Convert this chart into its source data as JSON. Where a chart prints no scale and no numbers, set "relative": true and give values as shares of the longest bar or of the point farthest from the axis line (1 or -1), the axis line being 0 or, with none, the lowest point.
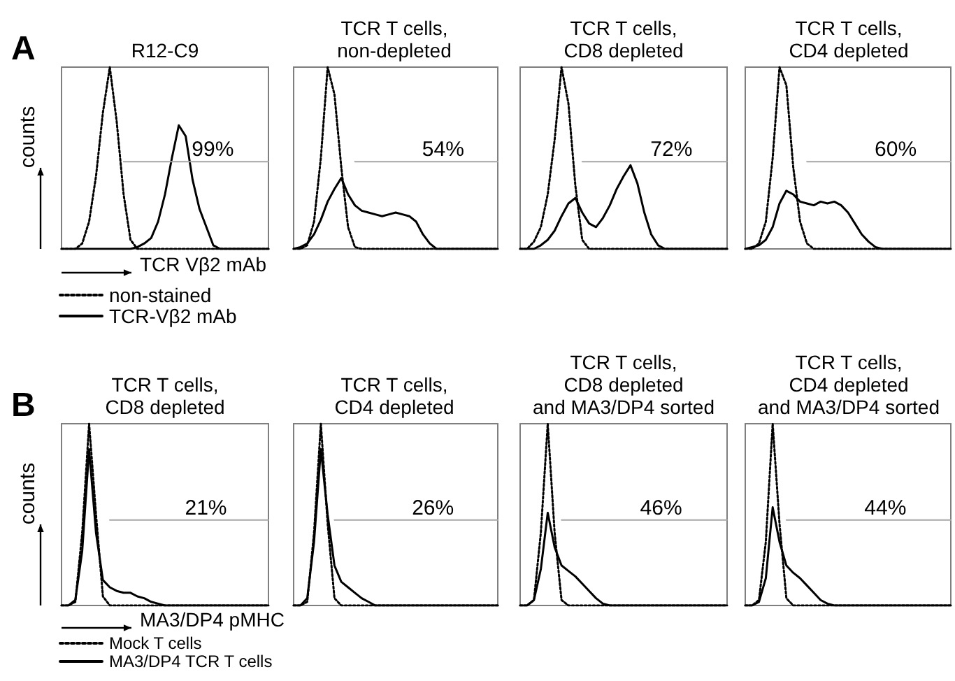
{
  "chart_data": [
    {
      "type": "line",
      "title": "R12-C9",
      "xlabel": "TCR Vβ2 mAb",
      "ylabel": "counts",
      "relative": true,
      "marker": "none",
      "legend": "bottom left",
      "annotations": [
        "A",
        {
          "text": "99%",
          "y": 0.48
        }
      ],
      "categories": [
        null,
        null,
        null,
        null,
        null,
        null,
        null,
        null,
        null,
        null,
        null,
        null,
        null,
        null,
        null,
        null,
        null,
        null,
        null,
        null,
        null,
        null,
        null,
        null,
        null,
        null,
        null,
        null,
        null,
        null,
        null
      ],
      "series": [
        {
          "name": "non-stained",
          "color": "#000000",
          "line_style": "dotted",
          "values": [
            0,
            0,
            0,
            0.03,
            0.15,
            0.4,
            0.75,
            1,
            0.7,
            0.3,
            0.05,
            0,
            0,
            0,
            0,
            0,
            0,
            0,
            0,
            0,
            0,
            0,
            0,
            0,
            0,
            0,
            0,
            0,
            0,
            0,
            0
          ]
        },
        {
          "name": "TCR-Vβ2 mAb",
          "color": "#000000",
          "line_style": "solid",
          "values": [
            0,
            0,
            0,
            0,
            0,
            0,
            0,
            0,
            0,
            0,
            0,
            0.01,
            0.03,
            0.06,
            0.15,
            0.3,
            0.5,
            0.68,
            0.62,
            0.38,
            0.22,
            0.12,
            0.02,
            0,
            0,
            0,
            0,
            0,
            0,
            0,
            0
          ]
        },
        {
          "color": "#a6a6a6",
          "line_style": "solid",
          "values": [
            null,
            null,
            null,
            null,
            null,
            null,
            null,
            null,
            null,
            0.48,
            0.48,
            0.48,
            0.48,
            0.48,
            0.48,
            0.48,
            0.48,
            0.48,
            0.48,
            0.48,
            0.48,
            0.48,
            0.48,
            0.48,
            0.48,
            0.48,
            0.48,
            0.48,
            0.48,
            0.48,
            0.48
          ]
        }
      ]
    },
    {
      "type": "line",
      "title": "TCR T cells,\nnon-depleted",
      "relative": true,
      "marker": "none",
      "annotations": [
        {
          "text": "54%",
          "y": 0.48
        }
      ],
      "categories": [
        null,
        null,
        null,
        null,
        null,
        null,
        null,
        null,
        null,
        null,
        null,
        null,
        null,
        null,
        null,
        null,
        null,
        null,
        null,
        null,
        null,
        null,
        null,
        null,
        null,
        null,
        null,
        null,
        null,
        null,
        null
      ],
      "series": [
        {
          "color": "#000000",
          "line_style": "dotted",
          "values": [
            0,
            0,
            0.02,
            0.15,
            0.5,
            1,
            0.85,
            0.45,
            0.12,
            0.01,
            0,
            0,
            0,
            0,
            0,
            0,
            0,
            0,
            0,
            0,
            0,
            0,
            0,
            0,
            0,
            0,
            0,
            0,
            0,
            0,
            0
          ]
        },
        {
          "color": "#000000",
          "line_style": "solid",
          "values": [
            0,
            0.01,
            0.03,
            0.08,
            0.16,
            0.26,
            0.33,
            0.39,
            0.3,
            0.24,
            0.21,
            0.2,
            0.19,
            0.18,
            0.19,
            0.2,
            0.19,
            0.18,
            0.15,
            0.08,
            0.03,
            0,
            0,
            0,
            0,
            0,
            0,
            0,
            0,
            0,
            0
          ]
        },
        {
          "color": "#a6a6a6",
          "line_style": "solid",
          "values": [
            null,
            null,
            null,
            null,
            null,
            null,
            null,
            null,
            null,
            0.48,
            0.48,
            0.48,
            0.48,
            0.48,
            0.48,
            0.48,
            0.48,
            0.48,
            0.48,
            0.48,
            0.48,
            0.48,
            0.48,
            0.48,
            0.48,
            0.48,
            0.48,
            0.48,
            0.48,
            0.48,
            0.48
          ]
        }
      ]
    },
    {
      "type": "line",
      "title": "TCR T cells,\nCD8 depleted",
      "relative": true,
      "marker": "none",
      "annotations": [
        {
          "text": "72%",
          "y": 0.48
        }
      ],
      "categories": [
        null,
        null,
        null,
        null,
        null,
        null,
        null,
        null,
        null,
        null,
        null,
        null,
        null,
        null,
        null,
        null,
        null,
        null,
        null,
        null,
        null,
        null,
        null,
        null,
        null,
        null,
        null,
        null,
        null,
        null,
        null
      ],
      "series": [
        {
          "color": "#000000",
          "line_style": "dotted",
          "values": [
            0,
            0,
            0.04,
            0.12,
            0.3,
            0.6,
            1,
            0.8,
            0.35,
            0.05,
            0,
            0,
            0,
            0,
            0,
            0,
            0,
            0,
            0,
            0,
            0,
            0,
            0,
            0,
            0,
            0,
            0,
            0,
            0,
            0,
            0
          ]
        },
        {
          "color": "#000000",
          "line_style": "solid",
          "values": [
            0,
            0,
            0,
            0.02,
            0.05,
            0.1,
            0.18,
            0.25,
            0.28,
            0.2,
            0.14,
            0.12,
            0.17,
            0.24,
            0.33,
            0.4,
            0.46,
            0.36,
            0.2,
            0.08,
            0.02,
            0,
            0,
            0,
            0,
            0,
            0,
            0,
            0,
            0,
            0
          ]
        },
        {
          "color": "#a6a6a6",
          "line_style": "solid",
          "values": [
            null,
            null,
            null,
            null,
            null,
            null,
            null,
            null,
            null,
            0.48,
            0.48,
            0.48,
            0.48,
            0.48,
            0.48,
            0.48,
            0.48,
            0.48,
            0.48,
            0.48,
            0.48,
            0.48,
            0.48,
            0.48,
            0.48,
            0.48,
            0.48,
            0.48,
            0.48,
            0.48,
            0.48
          ]
        }
      ]
    },
    {
      "type": "line",
      "title": "TCR T cells,\nCD4 depleted",
      "relative": true,
      "marker": "none",
      "annotations": [
        {
          "text": "60%",
          "y": 0.48
        }
      ],
      "categories": [
        null,
        null,
        null,
        null,
        null,
        null,
        null,
        null,
        null,
        null,
        null,
        null,
        null,
        null,
        null,
        null,
        null,
        null,
        null,
        null,
        null,
        null,
        null,
        null,
        null,
        null,
        null,
        null,
        null,
        null,
        null
      ],
      "series": [
        {
          "color": "#000000",
          "line_style": "dotted",
          "values": [
            0,
            0,
            0.03,
            0.15,
            0.5,
            1,
            0.9,
            0.45,
            0.15,
            0.03,
            0,
            0,
            0,
            0,
            0,
            0,
            0,
            0,
            0,
            0,
            0,
            0,
            0,
            0,
            0,
            0,
            0,
            0,
            0,
            0,
            0
          ]
        },
        {
          "color": "#000000",
          "line_style": "solid",
          "values": [
            0,
            0.01,
            0.02,
            0.05,
            0.12,
            0.25,
            0.32,
            0.3,
            0.26,
            0.25,
            0.24,
            0.26,
            0.25,
            0.26,
            0.24,
            0.2,
            0.14,
            0.08,
            0.04,
            0.01,
            0,
            0,
            0,
            0,
            0,
            0,
            0,
            0,
            0,
            0,
            0
          ]
        },
        {
          "color": "#a6a6a6",
          "line_style": "solid",
          "values": [
            null,
            null,
            null,
            null,
            null,
            null,
            null,
            null,
            null,
            0.48,
            0.48,
            0.48,
            0.48,
            0.48,
            0.48,
            0.48,
            0.48,
            0.48,
            0.48,
            0.48,
            0.48,
            0.48,
            0.48,
            0.48,
            0.48,
            0.48,
            0.48,
            0.48,
            0.48,
            0.48,
            0.48
          ]
        }
      ]
    },
    {
      "type": "line",
      "title": "TCR T cells,\nCD8 depleted",
      "xlabel": "MA3/DP4 pMHC",
      "ylabel": "counts",
      "relative": true,
      "marker": "none",
      "legend": "bottom left",
      "annotations": [
        "B",
        {
          "text": "21%",
          "y": 0.47
        }
      ],
      "categories": [
        null,
        null,
        null,
        null,
        null,
        null,
        null,
        null,
        null,
        null,
        null,
        null,
        null,
        null,
        null,
        null,
        null,
        null,
        null,
        null,
        null,
        null,
        null,
        null,
        null,
        null,
        null,
        null,
        null,
        null,
        null
      ],
      "series": [
        {
          "name": "Mock T cells",
          "color": "#000000",
          "line_style": "dotted",
          "values": [
            0,
            0,
            0.02,
            0.4,
            1,
            0.5,
            0.05,
            0,
            0,
            0,
            0,
            0,
            0,
            0,
            0,
            0,
            0,
            0,
            0,
            0,
            0,
            0,
            0,
            0,
            0,
            0,
            0,
            0,
            0,
            0,
            0
          ]
        },
        {
          "name": "MA3/DP4 TCR T cells",
          "color": "#000000",
          "line_style": "solid",
          "values": [
            0,
            0,
            0.03,
            0.3,
            0.86,
            0.4,
            0.14,
            0.1,
            0.08,
            0.07,
            0.07,
            0.05,
            0.04,
            0.02,
            0.01,
            0,
            0,
            0,
            0,
            0,
            0,
            0,
            0,
            0,
            0,
            0,
            0,
            0,
            0,
            0,
            0
          ]
        },
        {
          "color": "#a6a6a6",
          "line_style": "solid",
          "values": [
            null,
            null,
            null,
            null,
            null,
            null,
            null,
            0.47,
            0.47,
            0.47,
            0.47,
            0.47,
            0.47,
            0.47,
            0.47,
            0.47,
            0.47,
            0.47,
            0.47,
            0.47,
            0.47,
            0.47,
            0.47,
            0.47,
            0.47,
            0.47,
            0.47,
            0.47,
            0.47,
            0.47,
            0.47
          ]
        }
      ]
    },
    {
      "type": "line",
      "title": "TCR T cells,\nCD4 depleted",
      "relative": true,
      "marker": "none",
      "annotations": [
        {
          "text": "26%",
          "y": 0.47
        }
      ],
      "categories": [
        null,
        null,
        null,
        null,
        null,
        null,
        null,
        null,
        null,
        null,
        null,
        null,
        null,
        null,
        null,
        null,
        null,
        null,
        null,
        null,
        null,
        null,
        null,
        null,
        null,
        null,
        null,
        null,
        null,
        null,
        null
      ],
      "series": [
        {
          "color": "#000000",
          "line_style": "dotted",
          "values": [
            0,
            0,
            0.02,
            0.4,
            1,
            0.45,
            0.04,
            0,
            0,
            0,
            0,
            0,
            0,
            0,
            0,
            0,
            0,
            0,
            0,
            0,
            0,
            0,
            0,
            0,
            0,
            0,
            0,
            0,
            0,
            0,
            0
          ]
        },
        {
          "color": "#000000",
          "line_style": "solid",
          "values": [
            0,
            0,
            0.04,
            0.35,
            0.86,
            0.5,
            0.22,
            0.13,
            0.1,
            0.07,
            0.04,
            0.02,
            0,
            0,
            0,
            0,
            0,
            0,
            0,
            0,
            0,
            0,
            0,
            0,
            0,
            0,
            0,
            0,
            0,
            0,
            0
          ]
        },
        {
          "color": "#a6a6a6",
          "line_style": "solid",
          "values": [
            null,
            null,
            null,
            null,
            null,
            null,
            0.47,
            0.47,
            0.47,
            0.47,
            0.47,
            0.47,
            0.47,
            0.47,
            0.47,
            0.47,
            0.47,
            0.47,
            0.47,
            0.47,
            0.47,
            0.47,
            0.47,
            0.47,
            0.47,
            0.47,
            0.47,
            0.47,
            0.47,
            0.47,
            0.47
          ]
        }
      ]
    },
    {
      "type": "line",
      "title": "TCR T cells,\nCD8 depleted\nand MA3/DP4 sorted",
      "relative": true,
      "marker": "none",
      "annotations": [
        {
          "text": "46%",
          "y": 0.47
        }
      ],
      "categories": [
        null,
        null,
        null,
        null,
        null,
        null,
        null,
        null,
        null,
        null,
        null,
        null,
        null,
        null,
        null,
        null,
        null,
        null,
        null,
        null,
        null,
        null,
        null,
        null,
        null,
        null,
        null,
        null,
        null,
        null,
        null
      ],
      "series": [
        {
          "color": "#000000",
          "line_style": "dotted",
          "values": [
            0,
            0,
            0.03,
            0.4,
            1,
            0.4,
            0.03,
            0,
            0,
            0,
            0,
            0,
            0,
            0,
            0,
            0,
            0,
            0,
            0,
            0,
            0,
            0,
            0,
            0,
            0,
            0,
            0,
            0,
            0,
            0,
            0
          ]
        },
        {
          "color": "#000000",
          "line_style": "solid",
          "values": [
            0,
            0,
            0.03,
            0.2,
            0.51,
            0.32,
            0.22,
            0.19,
            0.16,
            0.12,
            0.08,
            0.04,
            0.01,
            0,
            0,
            0,
            0,
            0,
            0,
            0,
            0,
            0,
            0,
            0,
            0,
            0,
            0,
            0,
            0,
            0,
            0
          ]
        },
        {
          "color": "#a6a6a6",
          "line_style": "solid",
          "values": [
            null,
            null,
            null,
            null,
            null,
            null,
            0.47,
            0.47,
            0.47,
            0.47,
            0.47,
            0.47,
            0.47,
            0.47,
            0.47,
            0.47,
            0.47,
            0.47,
            0.47,
            0.47,
            0.47,
            0.47,
            0.47,
            0.47,
            0.47,
            0.47,
            0.47,
            0.47,
            0.47,
            0.47,
            0.47
          ]
        }
      ]
    },
    {
      "type": "line",
      "title": "TCR T cells,\nCD4 depleted\nand MA3/DP4 sorted",
      "relative": true,
      "marker": "none",
      "annotations": [
        {
          "text": "44%",
          "y": 0.47
        }
      ],
      "categories": [
        null,
        null,
        null,
        null,
        null,
        null,
        null,
        null,
        null,
        null,
        null,
        null,
        null,
        null,
        null,
        null,
        null,
        null,
        null,
        null,
        null,
        null,
        null,
        null,
        null,
        null,
        null,
        null,
        null,
        null,
        null
      ],
      "series": [
        {
          "color": "#000000",
          "line_style": "dotted",
          "values": [
            0,
            0,
            0.03,
            0.35,
            1,
            0.45,
            0.04,
            0,
            0,
            0,
            0,
            0,
            0,
            0,
            0,
            0,
            0,
            0,
            0,
            0,
            0,
            0,
            0,
            0,
            0,
            0,
            0,
            0,
            0,
            0,
            0
          ]
        },
        {
          "color": "#000000",
          "line_style": "solid",
          "values": [
            0,
            0,
            0.02,
            0.15,
            0.54,
            0.35,
            0.22,
            0.18,
            0.15,
            0.11,
            0.07,
            0.03,
            0.01,
            0,
            0,
            0,
            0,
            0,
            0,
            0,
            0,
            0,
            0,
            0,
            0,
            0,
            0,
            0,
            0,
            0,
            0
          ]
        },
        {
          "color": "#a6a6a6",
          "line_style": "solid",
          "values": [
            null,
            null,
            null,
            null,
            null,
            null,
            0.47,
            0.47,
            0.47,
            0.47,
            0.47,
            0.47,
            0.47,
            0.47,
            0.47,
            0.47,
            0.47,
            0.47,
            0.47,
            0.47,
            0.47,
            0.47,
            0.47,
            0.47,
            0.47,
            0.47,
            0.47,
            0.47,
            0.47,
            0.47,
            0.47
          ]
        }
      ]
    }
  ]
}
